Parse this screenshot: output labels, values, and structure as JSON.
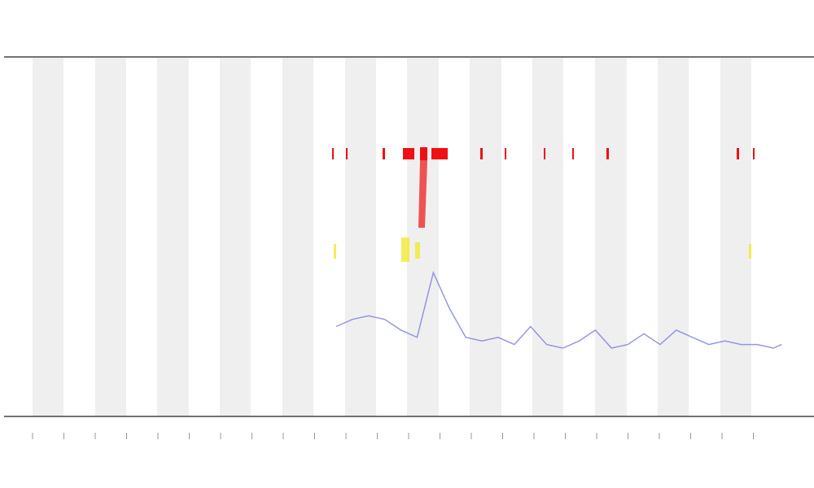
{
  "chart_data": {
    "type": "line",
    "x": [
      41,
      43,
      45,
      47,
      49,
      51,
      53,
      55,
      57,
      59,
      61,
      63,
      65,
      67,
      69,
      71,
      73,
      75,
      77,
      79,
      81,
      83,
      85,
      87,
      89,
      91,
      93,
      95,
      96
    ],
    "series": [
      {
        "color": "#7d7de0",
        "values": [
          25,
          27,
          28,
          27,
          24,
          22,
          40,
          30,
          22,
          21,
          22,
          20,
          25,
          20,
          19,
          21,
          24,
          19,
          20,
          23,
          20,
          24,
          22,
          20,
          21,
          20,
          20,
          19,
          20
        ]
      }
    ],
    "xlim": [
      0,
      100
    ],
    "ylim": [
      0,
      100
    ]
  }
}
